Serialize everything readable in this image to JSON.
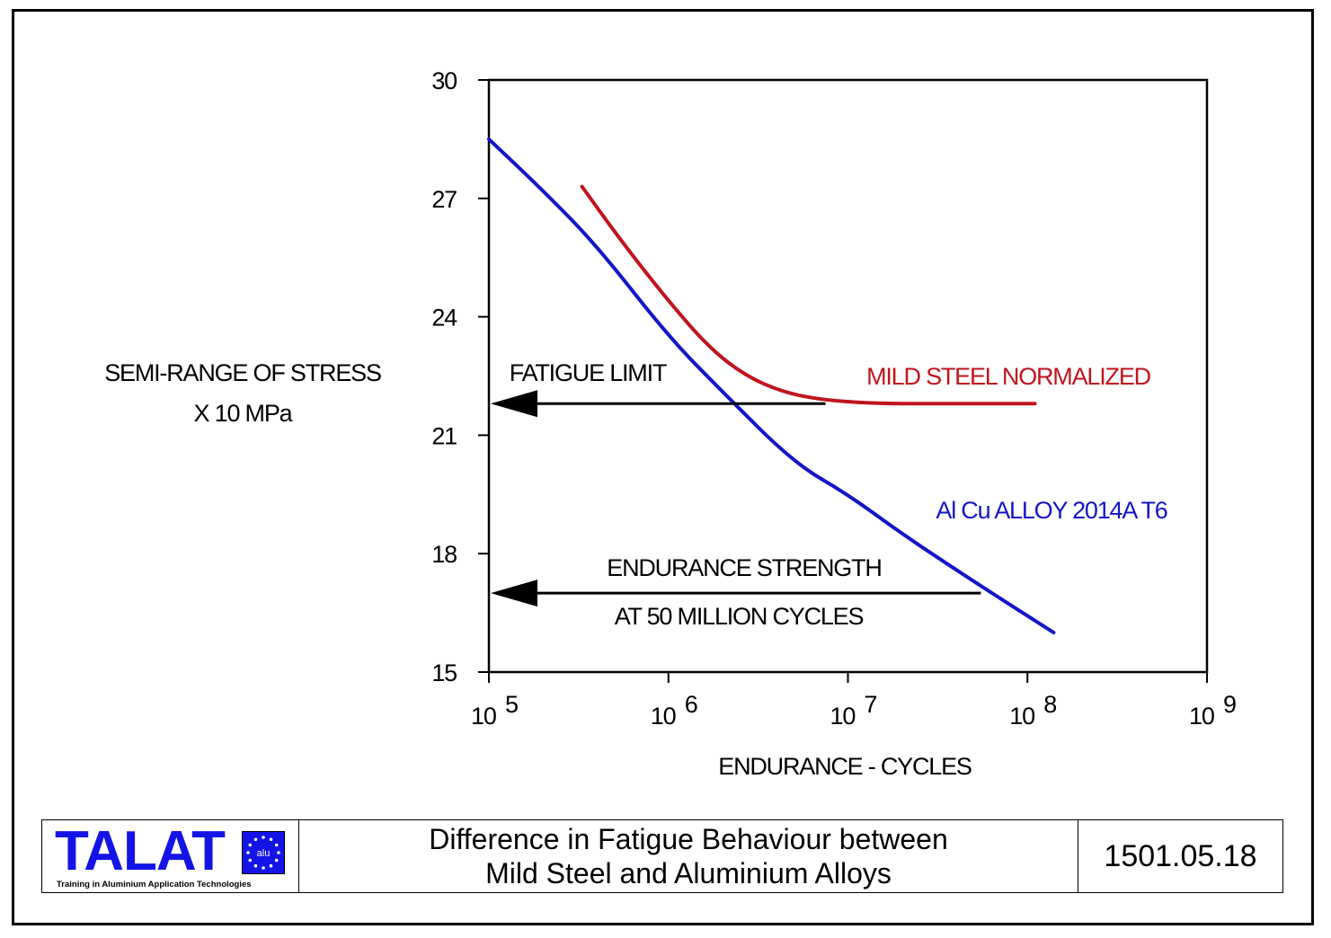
{
  "chart_data": {
    "type": "line",
    "xlabel": "ENDURANCE - CYCLES",
    "ylabel": [
      "SEMI-RANGE OF STRESS",
      "X 10 MPa"
    ],
    "x_scale": "log",
    "xlim": [
      100000,
      1000000000
    ],
    "ylim": [
      15,
      30
    ],
    "y_ticks": [
      "15",
      "18",
      "21",
      "24",
      "27",
      "30"
    ],
    "x_ticks": [
      {
        "base": "10",
        "exp": "5",
        "value": 100000
      },
      {
        "base": "10",
        "exp": "6",
        "value": 1000000
      },
      {
        "base": "10",
        "exp": "7",
        "value": 10000000
      },
      {
        "base": "10",
        "exp": "8",
        "value": 100000000
      },
      {
        "base": "10",
        "exp": "9",
        "value": 1000000000
      }
    ],
    "grid": false,
    "series": [
      {
        "name": "MILD STEEL NORMALIZED",
        "color": "#c0141e",
        "points": [
          [
            330000,
            27.3
          ],
          [
            550000,
            25.9
          ],
          [
            1000000,
            24.4
          ],
          [
            1700000,
            23.2
          ],
          [
            2700000,
            22.5
          ],
          [
            4300000,
            22.1
          ],
          [
            7000000,
            21.9
          ],
          [
            14000000,
            21.8
          ],
          [
            30000000,
            21.8
          ],
          [
            60000000,
            21.8
          ],
          [
            110000000,
            21.8
          ]
        ]
      },
      {
        "name": "Al Cu  ALLOY 2014A T6",
        "color": "#1414c8",
        "points": [
          [
            100000,
            28.5
          ],
          [
            200000,
            27.2
          ],
          [
            400000,
            25.8
          ],
          [
            1000000,
            23.5
          ],
          [
            2000000,
            22.1
          ],
          [
            5000000,
            20.3
          ],
          [
            10000000,
            19.5
          ],
          [
            20000000,
            18.5
          ],
          [
            50000000,
            17.3
          ],
          [
            140000000,
            16.0
          ]
        ]
      }
    ],
    "annotations": [
      {
        "name": "fatigue-limit",
        "text": "FATIGUE LIMIT",
        "y": 21.8,
        "x_from": 7500000,
        "x_to": 100000
      },
      {
        "name": "endurance-strength",
        "text": [
          "ENDURANCE STRENGTH",
          "AT 50 MILLION CYCLES"
        ],
        "y": 17.0,
        "x_from": 55000000,
        "x_to": 100000
      }
    ]
  },
  "footer": {
    "logo": "TALAT",
    "logo_badge": "alu",
    "logo_tagline": "Training in Aluminium Application Technologies",
    "title_line1": "Difference in Fatigue Behaviour between",
    "title_line2": "Mild Steel and Aluminium Alloys",
    "code": "1501.05.18"
  },
  "colors": {
    "logo_blue": "#1414e6",
    "steel": "#c0141e",
    "alloy": "#1414c8"
  }
}
